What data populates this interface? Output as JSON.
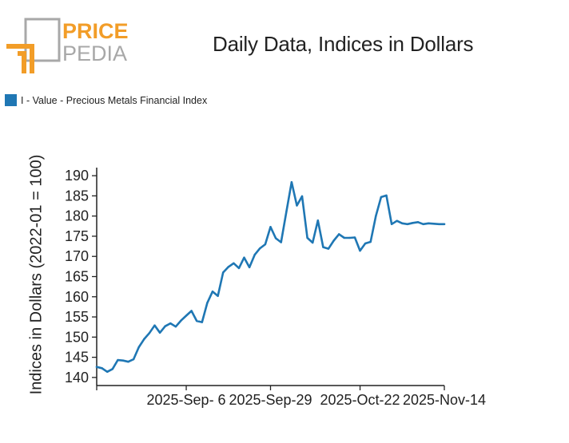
{
  "brand": {
    "word1": "PRICE",
    "word2": "PEDIA",
    "color_primary": "#f29d28",
    "color_secondary": "#a8a8a8"
  },
  "chart_data": {
    "type": "line",
    "title": "Daily Data, Indices in Dollars",
    "xlabel": "",
    "ylabel": "Indices in Dollars (2022-01 = 100)",
    "ylim": [
      138,
      192
    ],
    "yticks": [
      140,
      145,
      150,
      155,
      160,
      165,
      170,
      175,
      180,
      185,
      190
    ],
    "xticks": [
      {
        "index": 17,
        "label": "2025-Sep- 6"
      },
      {
        "index": 33,
        "label": "2025-Sep-29"
      },
      {
        "index": 50,
        "label": "2025-Oct-22"
      },
      {
        "index": 66,
        "label": "2025-Nov-14"
      }
    ],
    "x_count": 67,
    "grid": false,
    "legend_position": "top-left",
    "series": [
      {
        "name": "I - Value - Precious Metals Financial Index",
        "color": "#1f77b4",
        "values": [
          142.6,
          142.3,
          141.4,
          142.1,
          144.3,
          144.2,
          143.9,
          144.5,
          147.5,
          149.5,
          151.0,
          152.9,
          151.1,
          152.7,
          153.4,
          152.6,
          154.1,
          155.3,
          156.5,
          154.0,
          153.7,
          158.5,
          161.3,
          160.2,
          166.0,
          167.4,
          168.3,
          167.1,
          169.7,
          167.3,
          170.4,
          172.0,
          173.0,
          177.3,
          174.5,
          173.5,
          181.0,
          188.4,
          182.6,
          184.9,
          174.6,
          173.4,
          178.9,
          172.3,
          171.9,
          173.9,
          175.5,
          174.6,
          174.6,
          174.7,
          171.4,
          173.2,
          173.6,
          180.0,
          184.7,
          185.1,
          178.0,
          178.8,
          178.2,
          178.0,
          178.3,
          178.5,
          178.0,
          178.2,
          178.1,
          178.0,
          178.0
        ]
      }
    ]
  }
}
